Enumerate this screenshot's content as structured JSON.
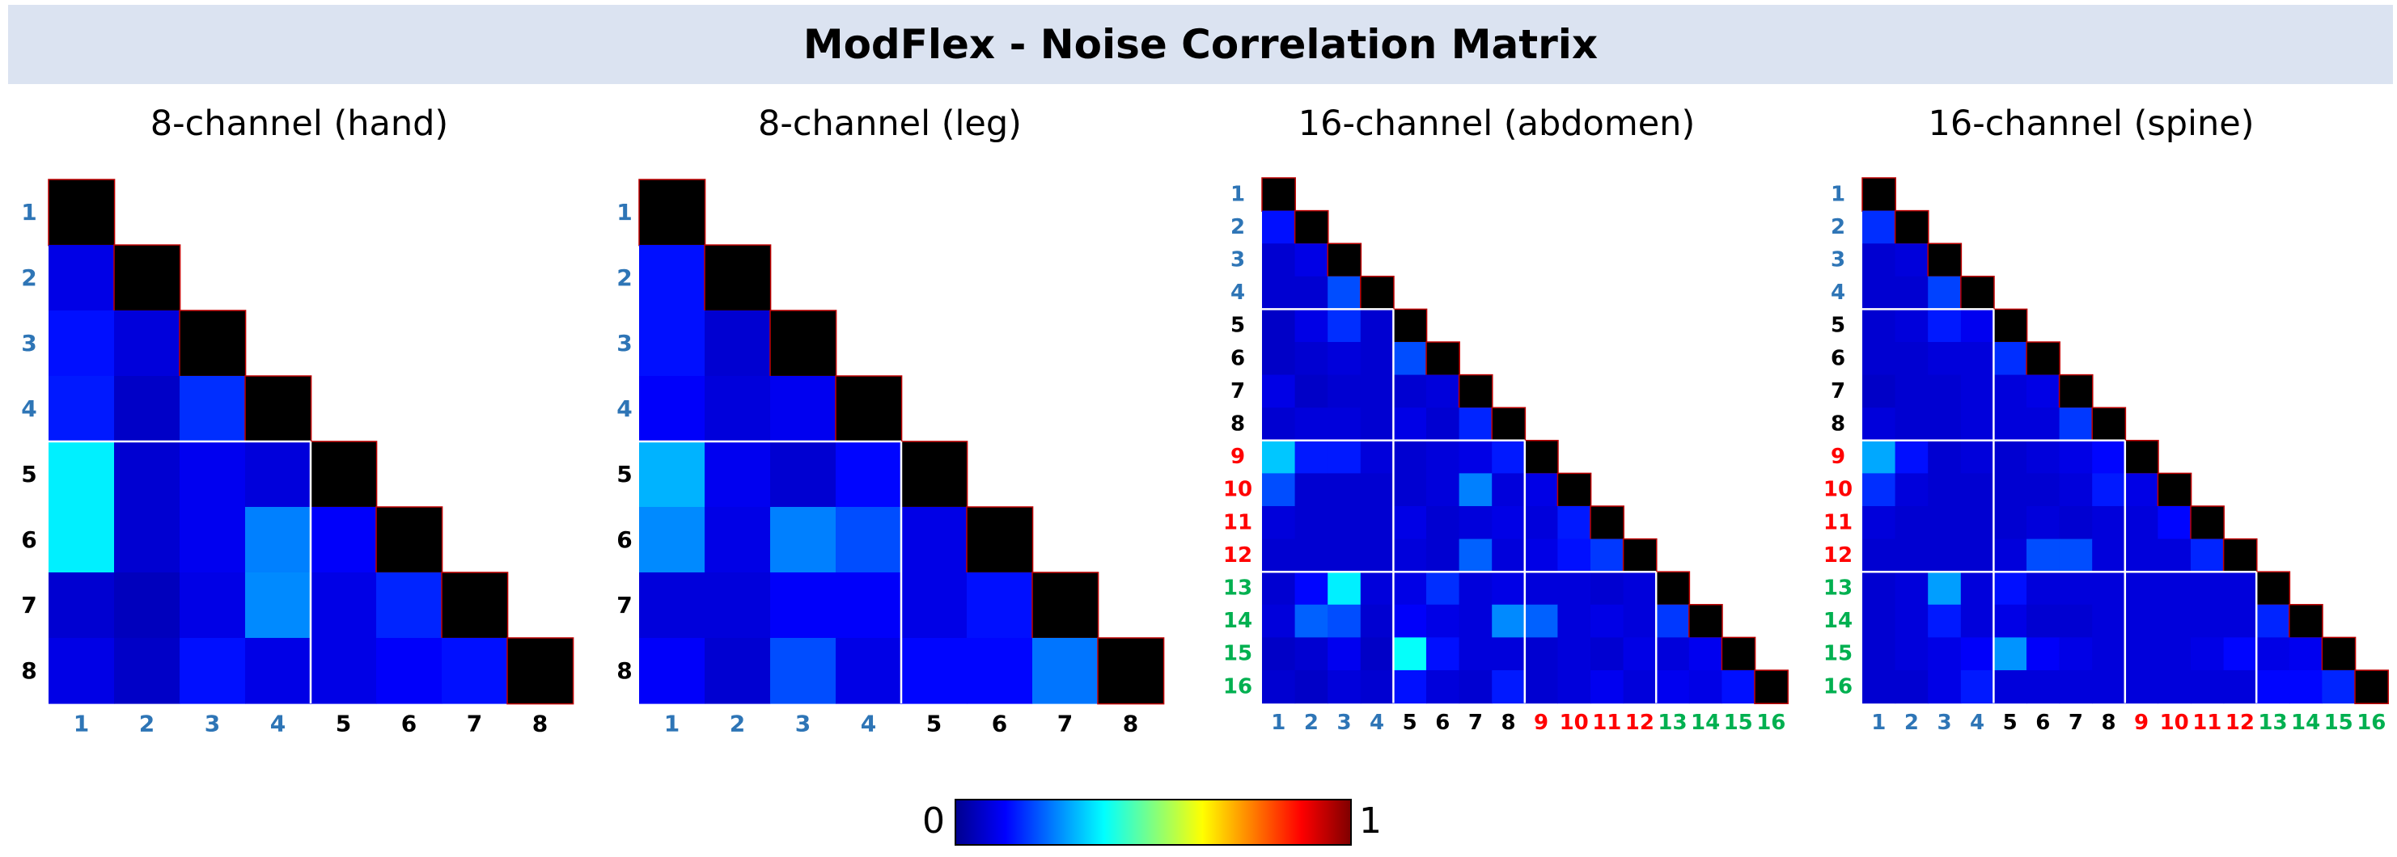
{
  "banner": {
    "title": "ModFlex - Noise Correlation Matrix"
  },
  "colorbar": {
    "min_label": "0",
    "max_label": "1"
  },
  "palette": {
    "blue_label": "#2e75b6",
    "black_label": "#000000",
    "red_label": "#ff0000",
    "green_label": "#00b050",
    "separator": "#ffffff",
    "diagonal": "#000000",
    "diagonal_border": "#c00000"
  },
  "chart_data": [
    {
      "type": "heatmap",
      "title": "8-channel (hand)",
      "labels": [
        "1",
        "2",
        "3",
        "4",
        "5",
        "6",
        "7",
        "8"
      ],
      "label_colors": [
        "blue",
        "blue",
        "blue",
        "blue",
        "black",
        "black",
        "black",
        "black"
      ],
      "groups": [
        4
      ],
      "rows": [
        [
          1.0
        ],
        [
          0.1,
          1.0
        ],
        [
          0.14,
          0.09,
          1.0
        ],
        [
          0.15,
          0.07,
          0.17,
          1.0
        ],
        [
          0.36,
          0.08,
          0.11,
          0.09,
          1.0
        ],
        [
          0.36,
          0.08,
          0.11,
          0.25,
          0.12,
          1.0
        ],
        [
          0.08,
          0.06,
          0.1,
          0.26,
          0.1,
          0.16,
          1.0
        ],
        [
          0.1,
          0.07,
          0.14,
          0.1,
          0.1,
          0.12,
          0.14,
          1.0
        ]
      ],
      "vmin": 0,
      "vmax": 1
    },
    {
      "type": "heatmap",
      "title": "8-channel (leg)",
      "labels": [
        "1",
        "2",
        "3",
        "4",
        "5",
        "6",
        "7",
        "8"
      ],
      "label_colors": [
        "blue",
        "blue",
        "blue",
        "blue",
        "black",
        "black",
        "black",
        "black"
      ],
      "groups": [
        4
      ],
      "rows": [
        [
          1.0
        ],
        [
          0.14,
          1.0
        ],
        [
          0.14,
          0.08,
          1.0
        ],
        [
          0.12,
          0.09,
          0.11,
          1.0
        ],
        [
          0.3,
          0.11,
          0.08,
          0.13,
          1.0
        ],
        [
          0.26,
          0.1,
          0.25,
          0.2,
          0.1,
          1.0
        ],
        [
          0.09,
          0.09,
          0.12,
          0.12,
          0.1,
          0.14,
          1.0
        ],
        [
          0.12,
          0.08,
          0.2,
          0.1,
          0.13,
          0.13,
          0.24,
          1.0
        ]
      ],
      "vmin": 0,
      "vmax": 1
    },
    {
      "type": "heatmap",
      "title": "16-channel (abdomen)",
      "labels": [
        "1",
        "2",
        "3",
        "4",
        "5",
        "6",
        "7",
        "8",
        "9",
        "10",
        "11",
        "12",
        "13",
        "14",
        "15",
        "16"
      ],
      "label_colors": [
        "blue",
        "blue",
        "blue",
        "blue",
        "black",
        "black",
        "black",
        "black",
        "red",
        "red",
        "red",
        "red",
        "green",
        "green",
        "green",
        "green"
      ],
      "groups": [
        4,
        8,
        12
      ],
      "rows": [
        [
          1.0
        ],
        [
          0.14,
          1.0
        ],
        [
          0.08,
          0.1,
          1.0
        ],
        [
          0.08,
          0.08,
          0.2,
          1.0
        ],
        [
          0.07,
          0.1,
          0.17,
          0.08,
          1.0
        ],
        [
          0.07,
          0.08,
          0.09,
          0.08,
          0.2,
          1.0
        ],
        [
          0.1,
          0.07,
          0.08,
          0.08,
          0.08,
          0.09,
          1.0
        ],
        [
          0.08,
          0.09,
          0.09,
          0.08,
          0.1,
          0.08,
          0.16,
          1.0
        ],
        [
          0.32,
          0.15,
          0.15,
          0.09,
          0.08,
          0.09,
          0.1,
          0.15,
          1.0
        ],
        [
          0.2,
          0.08,
          0.08,
          0.08,
          0.08,
          0.09,
          0.25,
          0.09,
          0.1,
          1.0
        ],
        [
          0.09,
          0.08,
          0.08,
          0.08,
          0.1,
          0.08,
          0.09,
          0.1,
          0.09,
          0.15,
          1.0
        ],
        [
          0.08,
          0.08,
          0.08,
          0.08,
          0.09,
          0.08,
          0.22,
          0.09,
          0.1,
          0.14,
          0.18,
          1.0
        ],
        [
          0.08,
          0.13,
          0.36,
          0.09,
          0.1,
          0.17,
          0.09,
          0.1,
          0.09,
          0.09,
          0.08,
          0.09,
          1.0
        ],
        [
          0.09,
          0.22,
          0.2,
          0.08,
          0.12,
          0.1,
          0.09,
          0.26,
          0.22,
          0.09,
          0.1,
          0.09,
          0.18,
          1.0
        ],
        [
          0.07,
          0.08,
          0.11,
          0.07,
          0.38,
          0.14,
          0.09,
          0.09,
          0.08,
          0.09,
          0.08,
          0.1,
          0.09,
          0.11,
          1.0
        ],
        [
          0.08,
          0.07,
          0.09,
          0.08,
          0.14,
          0.09,
          0.08,
          0.15,
          0.08,
          0.09,
          0.11,
          0.09,
          0.11,
          0.1,
          0.14,
          1.0
        ]
      ],
      "vmin": 0,
      "vmax": 1
    },
    {
      "type": "heatmap",
      "title": "16-channel (spine)",
      "labels": [
        "1",
        "2",
        "3",
        "4",
        "5",
        "6",
        "7",
        "8",
        "9",
        "10",
        "11",
        "12",
        "13",
        "14",
        "15",
        "16"
      ],
      "label_colors": [
        "blue",
        "blue",
        "blue",
        "blue",
        "black",
        "black",
        "black",
        "black",
        "red",
        "red",
        "red",
        "red",
        "green",
        "green",
        "green",
        "green"
      ],
      "groups": [
        4,
        8,
        12
      ],
      "rows": [
        [
          1.0
        ],
        [
          0.17,
          1.0
        ],
        [
          0.08,
          0.09,
          1.0
        ],
        [
          0.08,
          0.08,
          0.19,
          1.0
        ],
        [
          0.08,
          0.09,
          0.15,
          0.11,
          1.0
        ],
        [
          0.08,
          0.08,
          0.09,
          0.09,
          0.17,
          1.0
        ],
        [
          0.07,
          0.08,
          0.08,
          0.09,
          0.09,
          0.1,
          1.0
        ],
        [
          0.09,
          0.08,
          0.08,
          0.09,
          0.09,
          0.09,
          0.18,
          1.0
        ],
        [
          0.29,
          0.14,
          0.08,
          0.09,
          0.08,
          0.09,
          0.1,
          0.13,
          1.0
        ],
        [
          0.17,
          0.09,
          0.08,
          0.08,
          0.08,
          0.08,
          0.09,
          0.15,
          0.1,
          1.0
        ],
        [
          0.09,
          0.08,
          0.08,
          0.08,
          0.08,
          0.09,
          0.08,
          0.09,
          0.09,
          0.13,
          1.0
        ],
        [
          0.08,
          0.08,
          0.08,
          0.08,
          0.09,
          0.2,
          0.2,
          0.09,
          0.09,
          0.09,
          0.16,
          1.0
        ],
        [
          0.08,
          0.09,
          0.28,
          0.09,
          0.14,
          0.09,
          0.09,
          0.09,
          0.09,
          0.09,
          0.09,
          0.09,
          1.0
        ],
        [
          0.08,
          0.09,
          0.15,
          0.09,
          0.1,
          0.08,
          0.08,
          0.09,
          0.09,
          0.09,
          0.09,
          0.09,
          0.16,
          1.0
        ],
        [
          0.08,
          0.09,
          0.1,
          0.12,
          0.27,
          0.12,
          0.1,
          0.09,
          0.09,
          0.09,
          0.1,
          0.13,
          0.1,
          0.11,
          1.0
        ],
        [
          0.08,
          0.08,
          0.1,
          0.15,
          0.09,
          0.09,
          0.09,
          0.09,
          0.09,
          0.09,
          0.09,
          0.09,
          0.13,
          0.13,
          0.16,
          1.0
        ]
      ],
      "vmin": 0,
      "vmax": 1
    }
  ]
}
